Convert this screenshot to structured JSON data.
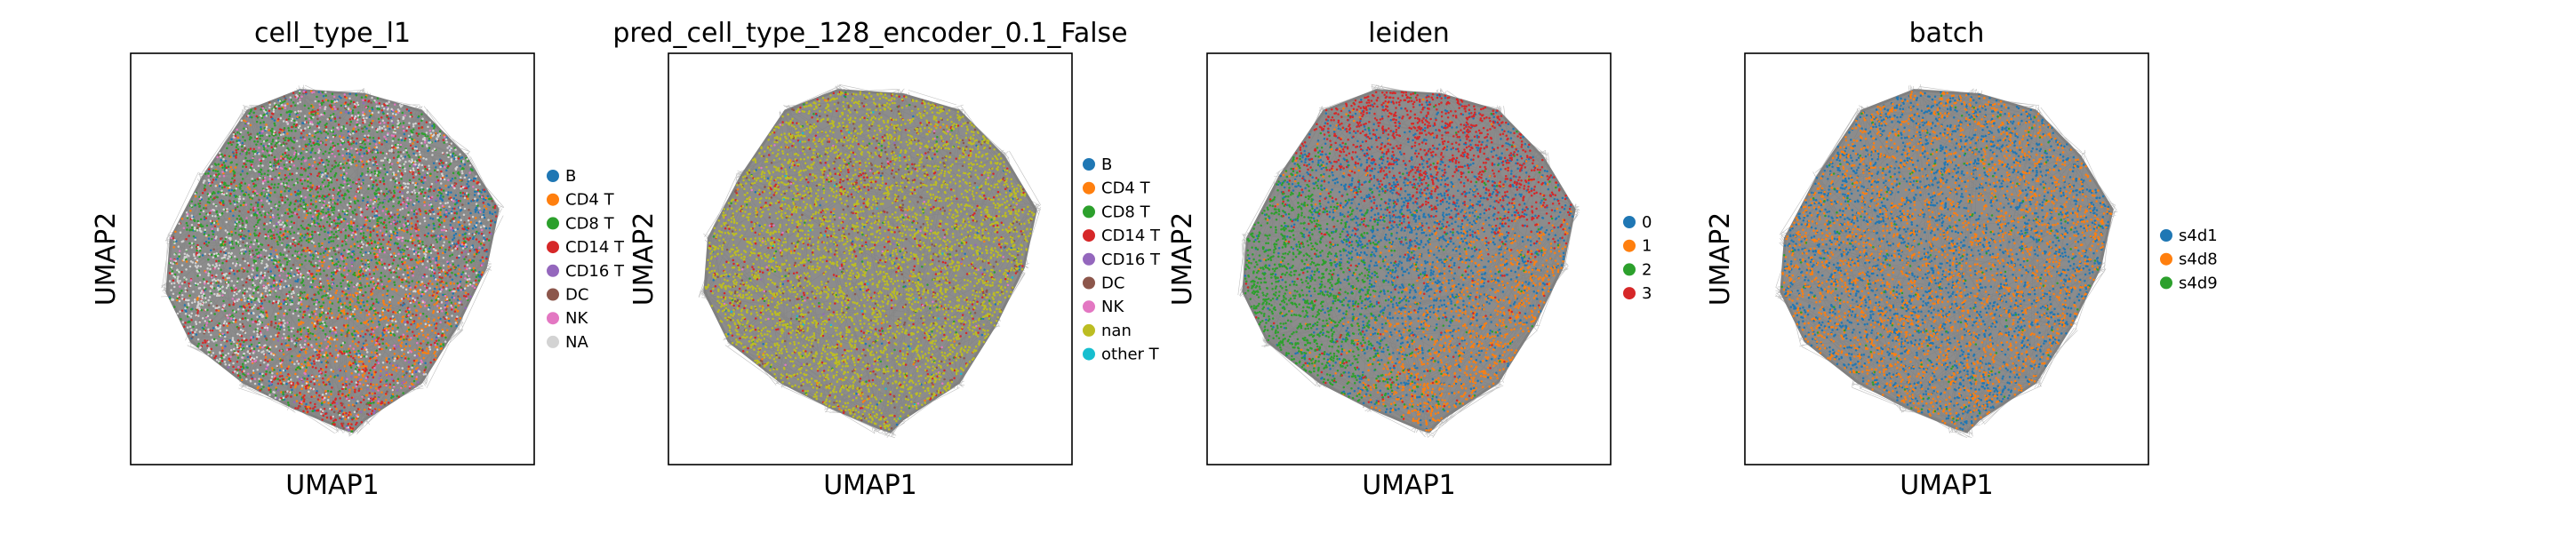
{
  "chart_data": [
    {
      "type": "scatter",
      "title": "cell_type_l1",
      "xlabel": "UMAP1",
      "ylabel": "UMAP2",
      "grid": false,
      "legend_position": "right",
      "legend": [
        {
          "name": "B",
          "color": "#1f77b4"
        },
        {
          "name": "CD4 T",
          "color": "#ff7f0e"
        },
        {
          "name": "CD8 T",
          "color": "#2ca02c"
        },
        {
          "name": "CD14 T",
          "color": "#d62728"
        },
        {
          "name": "CD16 T",
          "color": "#9467bd"
        },
        {
          "name": "DC",
          "color": "#8c564b"
        },
        {
          "name": "NK",
          "color": "#e377c2"
        },
        {
          "name": "NA",
          "color": "#d3d3d3"
        }
      ]
    },
    {
      "type": "scatter",
      "title": "pred_cell_type_128_encoder_0.1_False",
      "xlabel": "UMAP1",
      "ylabel": "UMAP2",
      "grid": false,
      "legend_position": "right",
      "legend": [
        {
          "name": "B",
          "color": "#1f77b4"
        },
        {
          "name": "CD4 T",
          "color": "#ff7f0e"
        },
        {
          "name": "CD8 T",
          "color": "#2ca02c"
        },
        {
          "name": "CD14 T",
          "color": "#d62728"
        },
        {
          "name": "CD16 T",
          "color": "#9467bd"
        },
        {
          "name": "DC",
          "color": "#8c564b"
        },
        {
          "name": "NK",
          "color": "#e377c2"
        },
        {
          "name": "nan",
          "color": "#bcbd22"
        },
        {
          "name": "other T",
          "color": "#17becf"
        }
      ]
    },
    {
      "type": "scatter",
      "title": "leiden",
      "xlabel": "UMAP1",
      "ylabel": "UMAP2",
      "grid": false,
      "legend_position": "right",
      "legend": [
        {
          "name": "0",
          "color": "#1f77b4"
        },
        {
          "name": "1",
          "color": "#ff7f0e"
        },
        {
          "name": "2",
          "color": "#2ca02c"
        },
        {
          "name": "3",
          "color": "#d62728"
        }
      ]
    },
    {
      "type": "scatter",
      "title": "batch",
      "xlabel": "UMAP1",
      "ylabel": "UMAP2",
      "grid": false,
      "legend_position": "right",
      "legend": [
        {
          "name": "s4d1",
          "color": "#1f77b4"
        },
        {
          "name": "s4d8",
          "color": "#ff7f0e"
        },
        {
          "name": "s4d9",
          "color": "#2ca02c"
        }
      ]
    }
  ],
  "edge_color": "#808080"
}
